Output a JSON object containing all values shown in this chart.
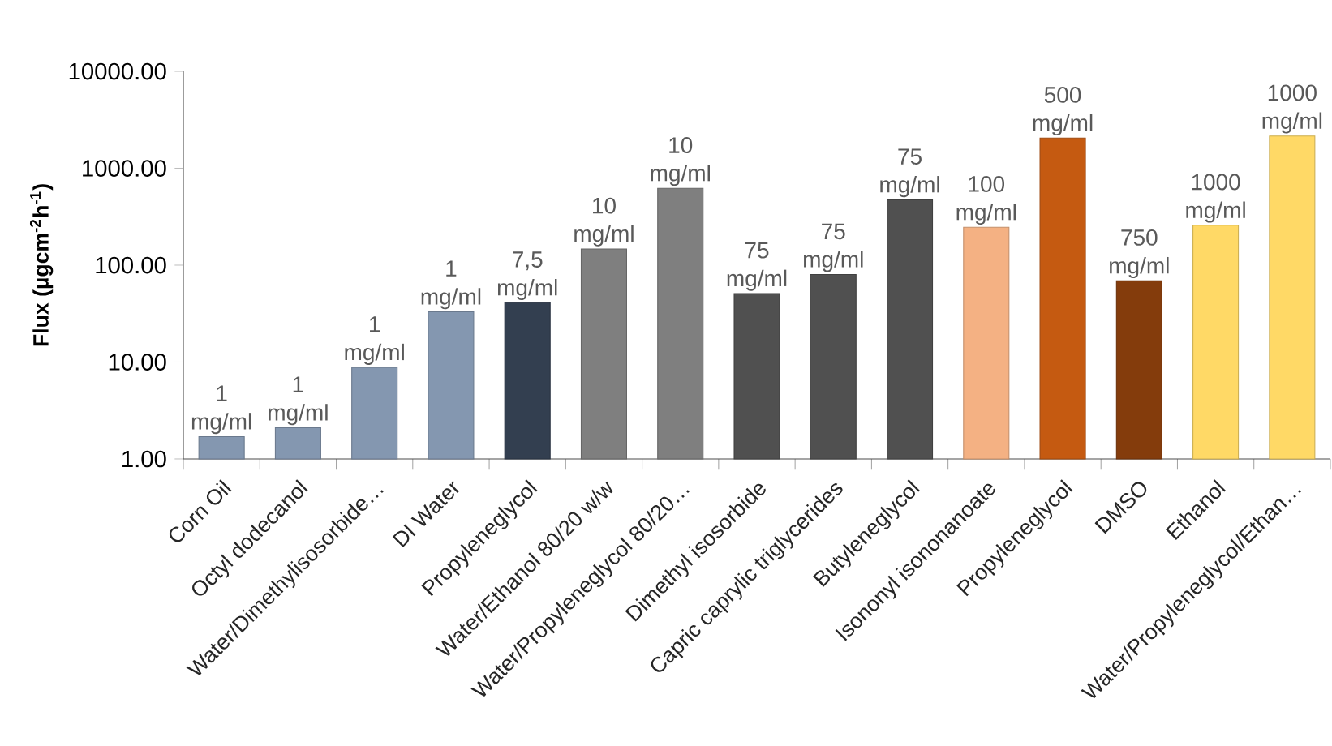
{
  "chart_data": {
    "type": "bar",
    "ylabel": "Flux (µgcm$^{-2}$h$^{-1}$)",
    "categories": [
      "Corn Oil",
      "Octyl dodecanol",
      "Water/Dimethylisosorbide…",
      "DI Water",
      "Propyleneglycol",
      "Water/Ethanol 80/20 w/w",
      "Water/Propyleneglycol 80/20…",
      "Dimethyl isosorbide",
      "Capric caprylic triglycerides",
      "Butyleneglycol",
      "Isononyl isononanoate",
      "Propyleneglycol",
      "DMSO",
      "Ethanol",
      "Water/Propyleneglycol/Ethan…"
    ],
    "values": [
      1.7,
      2.1,
      8.8,
      33,
      41,
      147,
      620,
      51,
      80,
      473,
      246,
      2050,
      69,
      258,
      2150
    ],
    "colors": [
      "#8497b0",
      "#8497b0",
      "#8497b0",
      "#8497b0",
      "#333f50",
      "#7f7f7f",
      "#7f7f7f",
      "#505050",
      "#505050",
      "#505050",
      "#f4b183",
      "#c55a11",
      "#843c0c",
      "#ffd966",
      "#ffd966"
    ],
    "log": "y",
    "ylim": [
      1,
      10000
    ],
    "yticks": [
      {
        "value": 1,
        "label": "1.00"
      },
      {
        "value": 10,
        "label": "10.00"
      },
      {
        "value": 100,
        "label": "100.00"
      },
      {
        "value": 1000,
        "label": "1000.00"
      },
      {
        "value": 10000,
        "label": "10000.00"
      }
    ],
    "annotations": [
      "1 mg/ml",
      "1 mg/ml",
      "1 mg/ml",
      "1 mg/ml",
      "7,5 mg/ml",
      "10 mg/ml",
      "10 mg/ml",
      "75 mg/ml",
      "75 mg/ml",
      "75 mg/ml",
      "100 mg/ml",
      "500 mg/ml",
      "750 mg/ml",
      "1000 mg/ml",
      "1000 mg/ml"
    ]
  }
}
